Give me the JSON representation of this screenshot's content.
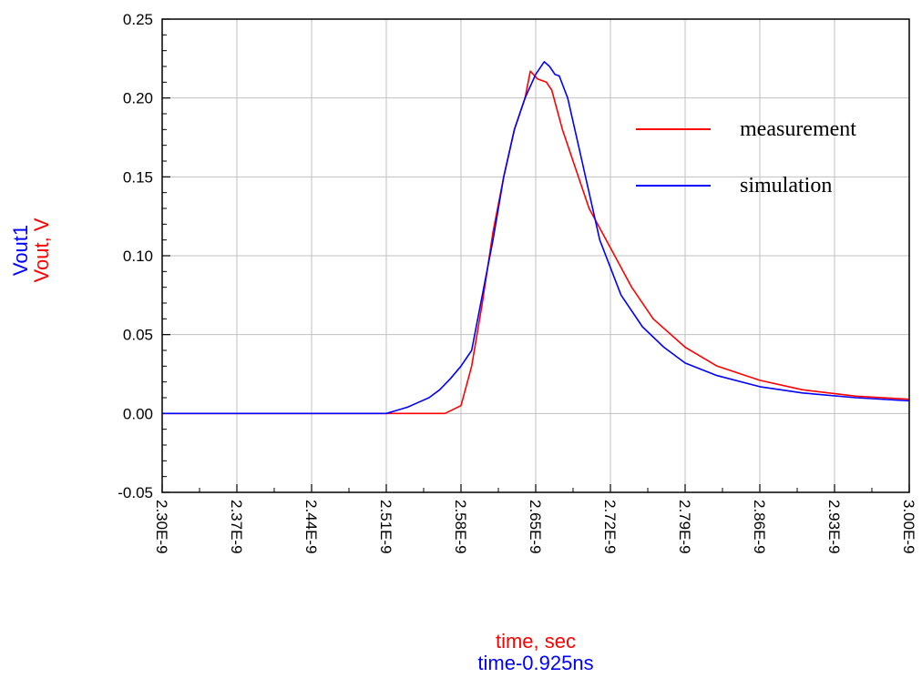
{
  "chart_data": {
    "type": "line",
    "title": "",
    "xlabel": [
      "time, sec",
      "time-0.925ns"
    ],
    "ylabel": [
      "Vout1",
      "Vout, V"
    ],
    "xlim": [
      2.3e-09,
      3e-09
    ],
    "ylim": [
      -0.05,
      0.25
    ],
    "x_tick_labels": [
      "2.30E-9",
      "2.37E-9",
      "2.44E-9",
      "2.51E-9",
      "2.58E-9",
      "2.65E-9",
      "2.72E-9",
      "2.79E-9",
      "2.86E-9",
      "2.93E-9",
      "3.00E-9"
    ],
    "y_tick_labels": [
      "-0.05",
      "0.00",
      "0.05",
      "0.10",
      "0.15",
      "0.20",
      "0.25"
    ],
    "grid": true,
    "legend_position": "top-right",
    "series": [
      {
        "name": "measurement",
        "color": "#ff0000",
        "x": [
          2.3e-09,
          2.51e-09,
          2.555e-09,
          2.565e-09,
          2.58e-09,
          2.59e-09,
          2.6e-09,
          2.61e-09,
          2.62e-09,
          2.63e-09,
          2.64e-09,
          2.645e-09,
          2.652e-09,
          2.66e-09,
          2.665e-09,
          2.675e-09,
          2.685e-09,
          2.7e-09,
          2.72e-09,
          2.74e-09,
          2.76e-09,
          2.79e-09,
          2.82e-09,
          2.86e-09,
          2.9e-09,
          2.95e-09,
          3e-09
        ],
        "y": [
          0.0,
          0.0,
          0.0,
          0.0,
          0.005,
          0.03,
          0.07,
          0.115,
          0.15,
          0.18,
          0.2,
          0.217,
          0.212,
          0.21,
          0.205,
          0.18,
          0.16,
          0.13,
          0.105,
          0.08,
          0.06,
          0.042,
          0.03,
          0.021,
          0.015,
          0.011,
          0.009
        ]
      },
      {
        "name": "simulation",
        "color": "#0000ff",
        "x": [
          2.3e-09,
          2.51e-09,
          2.52e-09,
          2.53e-09,
          2.54e-09,
          2.55e-09,
          2.56e-09,
          2.57e-09,
          2.58e-09,
          2.59e-09,
          2.6e-09,
          2.61e-09,
          2.62e-09,
          2.63e-09,
          2.64e-09,
          2.65e-09,
          2.658e-09,
          2.663e-09,
          2.668e-09,
          2.672e-09,
          2.68e-09,
          2.69e-09,
          2.7e-09,
          2.71e-09,
          2.73e-09,
          2.75e-09,
          2.77e-09,
          2.79e-09,
          2.82e-09,
          2.86e-09,
          2.9e-09,
          2.95e-09,
          3e-09
        ],
        "y": [
          0.0,
          0.0,
          0.002,
          0.004,
          0.007,
          0.01,
          0.015,
          0.022,
          0.03,
          0.04,
          0.075,
          0.11,
          0.15,
          0.18,
          0.2,
          0.215,
          0.223,
          0.22,
          0.215,
          0.214,
          0.2,
          0.17,
          0.14,
          0.11,
          0.075,
          0.055,
          0.042,
          0.032,
          0.024,
          0.017,
          0.013,
          0.01,
          0.008
        ]
      }
    ]
  }
}
